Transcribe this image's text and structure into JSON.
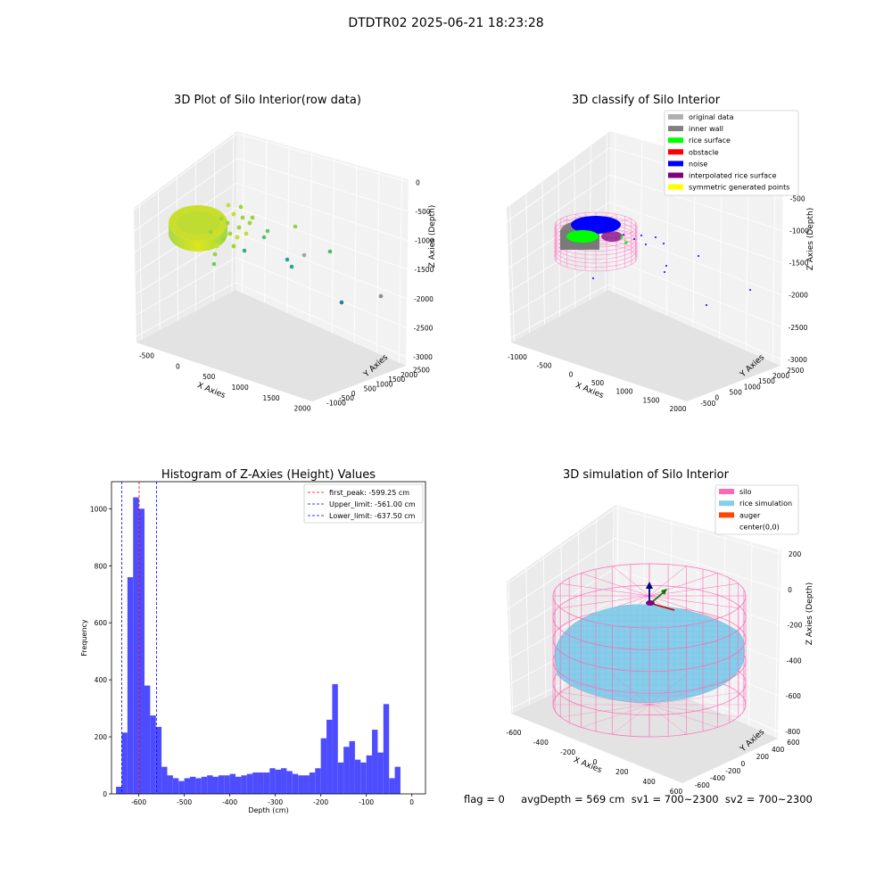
{
  "suptitle": "DTDTR02 2025-06-21 18:23:28",
  "status_line": "flag = 0     avgDepth = 569 cm  sv1 = 700~2300  sv2 = 700~2300",
  "chart_data": [
    {
      "type": "scatter",
      "projection": "3d",
      "title": "3D Plot of Silo Interior(row data)",
      "xlabel": "X Axies",
      "ylabel": "Y Axies",
      "zlabel": "Z Axies (Depth)",
      "x_ticks": [
        "-500",
        "0",
        "500",
        "1000",
        "1500",
        "2000"
      ],
      "y_ticks": [
        "-1000",
        "-500",
        "0",
        "500",
        "1000",
        "1500",
        "2000",
        "2500"
      ],
      "z_ticks": [
        "0",
        "-500",
        "-1000",
        "-1500",
        "-2000",
        "-2500",
        "-3000"
      ],
      "colormap": "viridis",
      "grid": true,
      "outlier_points": [
        {
          "x": 500,
          "y": 0,
          "z": -1000
        },
        {
          "x": 700,
          "y": 200,
          "z": -1200
        },
        {
          "x": 900,
          "y": 400,
          "z": -1500
        },
        {
          "x": 1100,
          "y": 500,
          "z": -1800
        },
        {
          "x": 1300,
          "y": 700,
          "z": -2000
        },
        {
          "x": 1700,
          "y": 1200,
          "z": -2600
        },
        {
          "x": 1900,
          "y": 1500,
          "z": -3000
        }
      ]
    },
    {
      "type": "scatter",
      "projection": "3d",
      "title": "3D classify of Silo Interior",
      "xlabel": "X Axies",
      "ylabel": "Y Axies",
      "zlabel": "Z Axies (Depth)",
      "x_ticks": [
        "-1000",
        "-500",
        "0",
        "500",
        "1000",
        "1500",
        "2000"
      ],
      "y_ticks": [
        "-500",
        "0",
        "500",
        "1000",
        "1500",
        "2000",
        "2500"
      ],
      "z_ticks": [
        "-500",
        "-1000",
        "-1500",
        "-2000",
        "-2500",
        "-3000"
      ],
      "legend_position": "top-right",
      "grid": true,
      "legend": [
        {
          "label": "original data",
          "color": "#b0b0b0"
        },
        {
          "label": "inner wall",
          "color": "#808080"
        },
        {
          "label": "rice surface",
          "color": "#00ff00"
        },
        {
          "label": "obstacle",
          "color": "#ff0000"
        },
        {
          "label": "noise",
          "color": "#0000ff"
        },
        {
          "label": "interpolated rice surface",
          "color": "#800080"
        },
        {
          "label": "symmetric generated points",
          "color": "#ffff00"
        }
      ]
    },
    {
      "type": "bar",
      "title": "Histogram of Z-Axies (Height) Values",
      "xlabel": "Depth (cm)",
      "ylabel": "Frequency",
      "xlim": [
        -660,
        30
      ],
      "ylim": [
        0,
        1095
      ],
      "x_ticks": [
        -600,
        -500,
        -400,
        -300,
        -200,
        -100,
        0
      ],
      "y_ticks": [
        0,
        200,
        400,
        600,
        800,
        1000
      ],
      "bar_color": "#4d4dff",
      "bin_width": 12.5,
      "bins_start": -650,
      "values": [
        25,
        215,
        760,
        1040,
        1000,
        380,
        275,
        235,
        95,
        65,
        55,
        45,
        55,
        60,
        55,
        60,
        65,
        60,
        65,
        65,
        70,
        60,
        65,
        70,
        75,
        75,
        75,
        90,
        85,
        90,
        80,
        70,
        65,
        65,
        75,
        90,
        195,
        260,
        385,
        110,
        165,
        185,
        120,
        110,
        135,
        225,
        145,
        315,
        55,
        95
      ],
      "reference_lines": [
        {
          "label": "first_peak: -599.25 cm",
          "value": -599.25,
          "color": "#ff0000"
        },
        {
          "label": "Upper_limit: -561.00 cm",
          "value": -561.0,
          "color": "#0000ff"
        },
        {
          "label": "Lower_limit: -637.50 cm",
          "value": -637.5,
          "color": "#0000ff"
        }
      ],
      "legend_position": "top-right"
    },
    {
      "type": "surface",
      "projection": "3d",
      "title": "3D simulation of Silo Interior",
      "xlabel": "X Axies",
      "ylabel": "Y Axies",
      "zlabel": "Z Axies (Depth)",
      "x_ticks": [
        "-600",
        "-400",
        "-200",
        "0",
        "200",
        "400",
        "600"
      ],
      "y_ticks": [
        "-600",
        "-400",
        "-200",
        "0",
        "200",
        "400",
        "600"
      ],
      "z_ticks": [
        "200",
        "0",
        "-200",
        "-400",
        "-600",
        "-800"
      ],
      "legend_position": "top-right",
      "grid": true,
      "legend": [
        {
          "label": "silo",
          "color": "#ff69b4"
        },
        {
          "label": "rice simulation",
          "color": "#87ceeb"
        },
        {
          "label": "auger",
          "color": "#ff4500"
        },
        {
          "label": "center(0,0)",
          "color": ""
        }
      ]
    }
  ]
}
